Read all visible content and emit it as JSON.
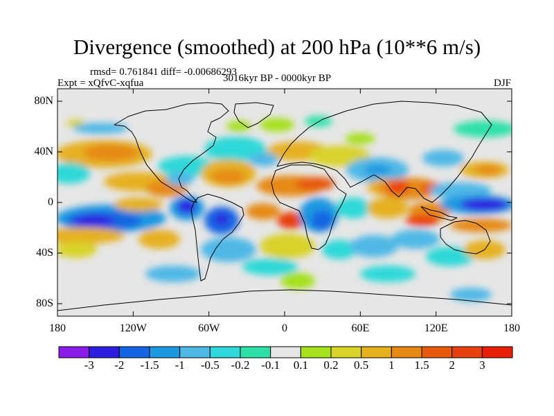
{
  "title": "Divergence (smoothed) at 200 hPa (10**6 m/s)",
  "stats": "rmsd= 0.761841 diff= -0.00686293",
  "experiment": "Expt = xQfvC-xqfua",
  "period": "3016kyr BP - 0000kyr BP",
  "season": "DJF",
  "y_axis_labels": [
    "80N",
    "40N",
    "0",
    "40S",
    "80S"
  ],
  "x_axis_labels": [
    "180",
    "120W",
    "60W",
    "0",
    "60E",
    "120E",
    "180"
  ],
  "colorbar": {
    "colors": [
      "#8a1ee8",
      "#2d1fe0",
      "#1565e2",
      "#1a98e0",
      "#4fb8e6",
      "#2fd8d8",
      "#2ee0a8",
      "#e6e6e6",
      "#a6e01e",
      "#d8d22a",
      "#e6b020",
      "#e68a14",
      "#e65a10",
      "#e8400e",
      "#e81e0a"
    ],
    "labels": [
      "-3",
      "-2",
      "-1.5",
      "-1",
      "-0.5",
      "-0.2",
      "-0.1",
      "0.1",
      "0.2",
      "0.5",
      "1",
      "1.5",
      "2",
      "3"
    ]
  }
}
